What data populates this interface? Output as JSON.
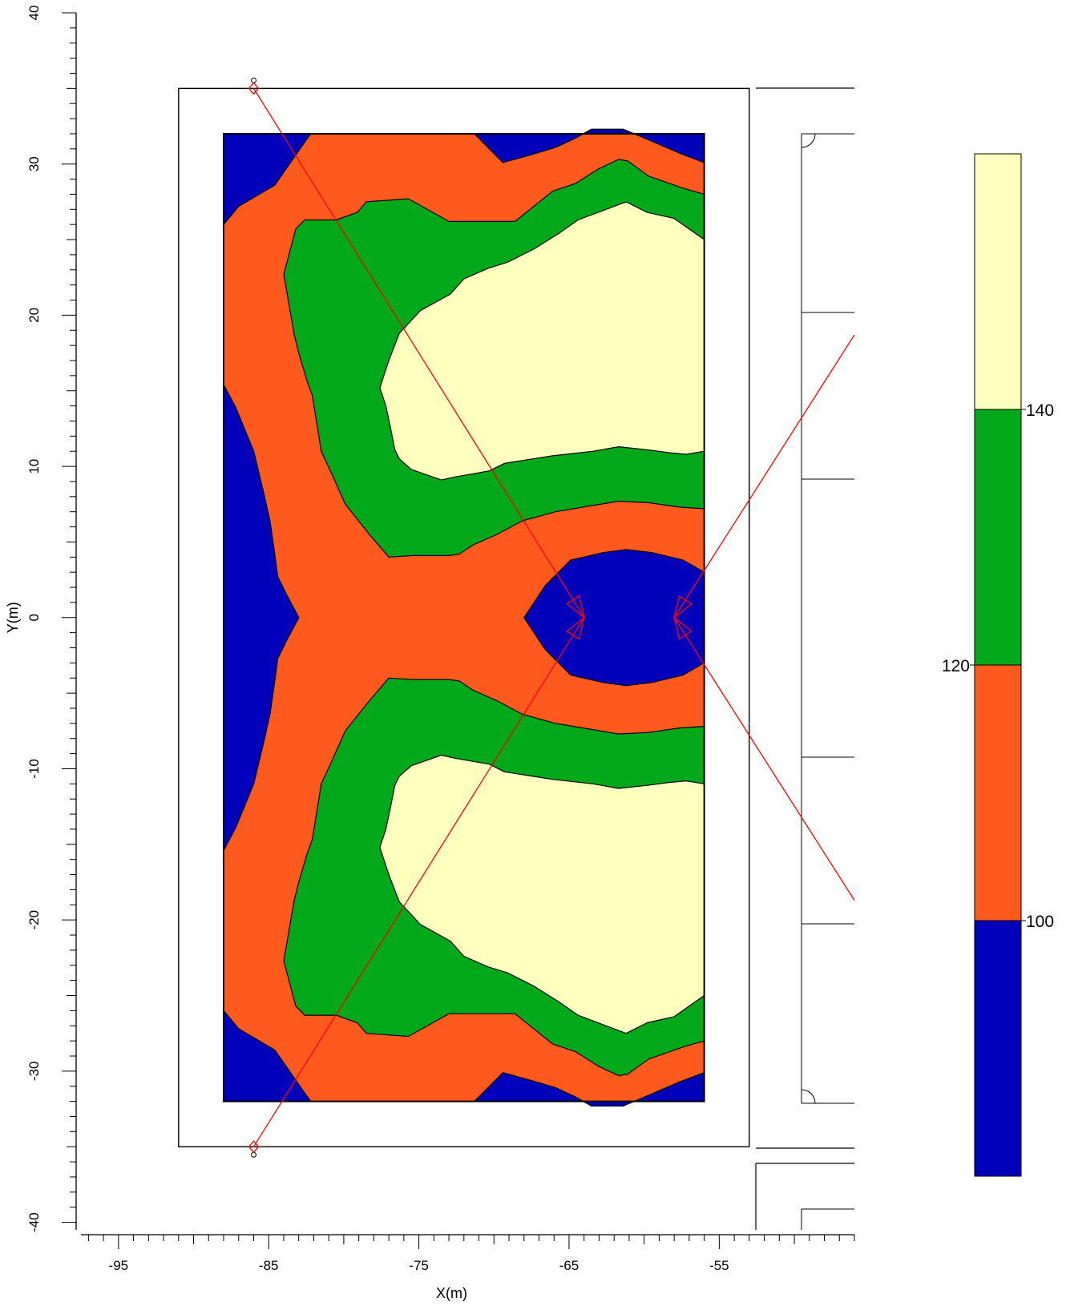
{
  "chart_data": {
    "type": "contour",
    "title": "",
    "xlabel": "X(m)",
    "ylabel": "Y(m)",
    "xlim": [
      -97.5,
      -46
    ],
    "ylim": [
      -40.5,
      40
    ],
    "x_ticks": [
      -95,
      -85,
      -75,
      -65,
      -55
    ],
    "y_ticks": [
      40,
      30,
      20,
      10,
      0,
      -10,
      -20,
      -30,
      -40
    ],
    "grid": false,
    "colors": {
      "below_100": "#0000BB",
      "100_to_120": "#FF5A1E",
      "120_to_140": "#00A81A",
      "above_140": "#FFFFBE",
      "outline": "#000000",
      "light_rays": "#FF0000"
    },
    "legend": {
      "placement": "right",
      "levels": [
        100,
        120,
        140
      ],
      "labels": [
        "140",
        "120",
        "100"
      ],
      "bands": [
        {
          "name": "above_140",
          "color": "#FFFFBE"
        },
        {
          "name": "120_to_140",
          "color": "#00A81A"
        },
        {
          "name": "100_to_120",
          "color": "#FF5A1E"
        },
        {
          "name": "below_100",
          "color": "#0000BB"
        }
      ]
    },
    "area": {
      "x": [
        -88,
        -56
      ],
      "y": [
        -32,
        32
      ]
    },
    "room_outline": {
      "x": [
        -91,
        -53
      ],
      "y": [
        -35,
        35
      ]
    },
    "sources": [
      {
        "x": -86,
        "y": 35
      },
      {
        "x": -86,
        "y": -35
      }
    ],
    "contours": [
      {
        "band": "100_to_120",
        "polygon": [
          [
            -88,
            26
          ],
          [
            -87,
            27.2
          ],
          [
            -84.6,
            28.6
          ],
          [
            -82.5,
            31.6
          ],
          [
            -82.2,
            32
          ],
          [
            -71.3,
            32
          ],
          [
            -69.4,
            30.1
          ],
          [
            -67.6,
            30.6
          ],
          [
            -65.9,
            31.1
          ],
          [
            -64.6,
            31.7
          ],
          [
            -63.5,
            32.3
          ],
          [
            -61.4,
            32.3
          ],
          [
            -59.7,
            31.6
          ],
          [
            -57.6,
            30.7
          ],
          [
            -56,
            30.1
          ],
          [
            -56,
            -30.1
          ],
          [
            -57.6,
            -30.7
          ],
          [
            -59.7,
            -31.6
          ],
          [
            -61.4,
            -32.3
          ],
          [
            -63.5,
            -32.3
          ],
          [
            -64.6,
            -31.7
          ],
          [
            -65.9,
            -31.1
          ],
          [
            -67.6,
            -30.6
          ],
          [
            -69.4,
            -30.1
          ],
          [
            -71.3,
            -32
          ],
          [
            -82.2,
            -32
          ],
          [
            -82.5,
            -31.6
          ],
          [
            -84.6,
            -28.6
          ],
          [
            -87,
            -27.2
          ],
          [
            -88,
            -26
          ],
          [
            -88,
            -15.4
          ],
          [
            -87.2,
            -13.9
          ],
          [
            -86,
            -11
          ],
          [
            -85.3,
            -8.1
          ],
          [
            -84.9,
            -6.3
          ],
          [
            -84.6,
            -4.2
          ],
          [
            -84.4,
            -2.7
          ],
          [
            -83.8,
            -1.5
          ],
          [
            -83,
            0
          ],
          [
            -83.8,
            1.5
          ],
          [
            -84.4,
            2.7
          ],
          [
            -84.6,
            4.2
          ],
          [
            -84.9,
            6.3
          ],
          [
            -85.3,
            8.1
          ],
          [
            -86,
            11
          ],
          [
            -87.2,
            13.9
          ],
          [
            -88,
            15.4
          ]
        ]
      },
      {
        "band": "120_to_140",
        "polygon": [
          [
            -80.5,
            26.3
          ],
          [
            -79.1,
            26.8
          ],
          [
            -78.5,
            27.5
          ],
          [
            -75.7,
            27.7
          ],
          [
            -73,
            26.2
          ],
          [
            -68.6,
            26.2
          ],
          [
            -67.6,
            27
          ],
          [
            -66.1,
            28.2
          ],
          [
            -64.6,
            28.7
          ],
          [
            -63,
            29.7
          ],
          [
            -61.7,
            30.3
          ],
          [
            -61.1,
            30.2
          ],
          [
            -59.7,
            29.2
          ],
          [
            -57.4,
            28.4
          ],
          [
            -56,
            28
          ],
          [
            -56,
            7.2
          ],
          [
            -57.6,
            7.3
          ],
          [
            -59.7,
            7.6
          ],
          [
            -61.7,
            7.7
          ],
          [
            -63.5,
            7.4
          ],
          [
            -65.9,
            7
          ],
          [
            -68.1,
            6.4
          ],
          [
            -69.8,
            5.5
          ],
          [
            -71.4,
            4.8
          ],
          [
            -72.3,
            4.2
          ],
          [
            -73,
            4.1
          ],
          [
            -75.4,
            4.1
          ],
          [
            -77,
            4
          ],
          [
            -78.3,
            5.5
          ],
          [
            -79.9,
            7.5
          ],
          [
            -80.8,
            9.5
          ],
          [
            -81.5,
            11
          ],
          [
            -82.1,
            14.7
          ],
          [
            -82.4,
            15.5
          ],
          [
            -83,
            17.5
          ],
          [
            -83.3,
            18.7
          ],
          [
            -84,
            22.7
          ],
          [
            -83.2,
            25.7
          ],
          [
            -82.6,
            26.3
          ]
        ]
      },
      {
        "band": "120_to_140",
        "polygon": [
          [
            -80.5,
            -26.3
          ],
          [
            -79.1,
            -26.8
          ],
          [
            -78.5,
            -27.5
          ],
          [
            -75.7,
            -27.7
          ],
          [
            -73,
            -26.2
          ],
          [
            -68.6,
            -26.2
          ],
          [
            -67.6,
            -27
          ],
          [
            -66.1,
            -28.2
          ],
          [
            -64.6,
            -28.7
          ],
          [
            -63,
            -29.7
          ],
          [
            -61.7,
            -30.3
          ],
          [
            -61.1,
            -30.2
          ],
          [
            -59.7,
            -29.2
          ],
          [
            -57.4,
            -28.4
          ],
          [
            -56,
            -28
          ],
          [
            -56,
            -7.2
          ],
          [
            -57.6,
            -7.3
          ],
          [
            -59.7,
            -7.6
          ],
          [
            -61.7,
            -7.7
          ],
          [
            -63.5,
            -7.4
          ],
          [
            -65.9,
            -7
          ],
          [
            -68.1,
            -6.4
          ],
          [
            -69.8,
            -5.5
          ],
          [
            -71.4,
            -4.8
          ],
          [
            -72.3,
            -4.2
          ],
          [
            -73,
            -4.1
          ],
          [
            -75.4,
            -4.1
          ],
          [
            -77,
            -4
          ],
          [
            -78.3,
            -5.5
          ],
          [
            -79.9,
            -7.5
          ],
          [
            -80.8,
            -9.5
          ],
          [
            -81.5,
            -11
          ],
          [
            -82.1,
            -14.7
          ],
          [
            -82.4,
            -15.5
          ],
          [
            -83,
            -17.5
          ],
          [
            -83.3,
            -18.7
          ],
          [
            -84,
            -22.7
          ],
          [
            -83.2,
            -25.7
          ],
          [
            -82.6,
            -26.3
          ]
        ]
      },
      {
        "band": "above_140",
        "polygon": [
          [
            -76.3,
            18.8
          ],
          [
            -74.9,
            20.3
          ],
          [
            -72.9,
            21.4
          ],
          [
            -72,
            22.4
          ],
          [
            -70.4,
            23.1
          ],
          [
            -69.1,
            23.5
          ],
          [
            -67.3,
            24.4
          ],
          [
            -65.7,
            25.4
          ],
          [
            -64.4,
            26.3
          ],
          [
            -61.2,
            27.5
          ],
          [
            -59.8,
            26.8
          ],
          [
            -58,
            26.4
          ],
          [
            -56,
            25
          ],
          [
            -56,
            11
          ],
          [
            -57.2,
            10.8
          ],
          [
            -58.3,
            10.9
          ],
          [
            -59.8,
            11.1
          ],
          [
            -61.7,
            11.3
          ],
          [
            -63.4,
            11
          ],
          [
            -66.1,
            10.7
          ],
          [
            -67.4,
            10.5
          ],
          [
            -69.3,
            10.2
          ],
          [
            -70.3,
            9.7
          ],
          [
            -72.6,
            9.3
          ],
          [
            -73.5,
            9.1
          ],
          [
            -75.5,
            9.8
          ],
          [
            -76.3,
            10.5
          ],
          [
            -76.6,
            11.1
          ],
          [
            -76.9,
            12.6
          ],
          [
            -77.2,
            14
          ],
          [
            -77.6,
            15.2
          ],
          [
            -77,
            17
          ]
        ]
      },
      {
        "band": "above_140",
        "polygon": [
          [
            -76.3,
            -18.8
          ],
          [
            -74.9,
            -20.3
          ],
          [
            -72.9,
            -21.4
          ],
          [
            -72,
            -22.4
          ],
          [
            -70.4,
            -23.1
          ],
          [
            -69.1,
            -23.5
          ],
          [
            -67.3,
            -24.4
          ],
          [
            -65.7,
            -25.4
          ],
          [
            -64.4,
            -26.3
          ],
          [
            -61.2,
            -27.5
          ],
          [
            -59.8,
            -26.8
          ],
          [
            -58,
            -26.4
          ],
          [
            -56,
            -25
          ],
          [
            -56,
            -11
          ],
          [
            -57.2,
            -10.8
          ],
          [
            -58.3,
            -10.9
          ],
          [
            -59.8,
            -11.1
          ],
          [
            -61.7,
            -11.3
          ],
          [
            -63.4,
            -11
          ],
          [
            -66.1,
            -10.7
          ],
          [
            -67.4,
            -10.5
          ],
          [
            -69.3,
            -10.2
          ],
          [
            -70.3,
            -9.7
          ],
          [
            -72.6,
            -9.3
          ],
          [
            -73.5,
            -9.1
          ],
          [
            -75.5,
            -9.8
          ],
          [
            -76.3,
            -10.5
          ],
          [
            -76.6,
            -11.1
          ],
          [
            -76.9,
            -12.6
          ],
          [
            -77.2,
            -14
          ],
          [
            -77.6,
            -15.2
          ],
          [
            -77,
            -17
          ]
        ]
      },
      {
        "band": "below_100",
        "polygon": [
          [
            -88,
            32
          ],
          [
            -88,
            26
          ],
          [
            -87,
            27.2
          ],
          [
            -84.6,
            28.6
          ],
          [
            -82.5,
            31.6
          ],
          [
            -82.2,
            32
          ]
        ]
      },
      {
        "band": "below_100",
        "polygon": [
          [
            -71.3,
            32
          ],
          [
            -69.4,
            30.1
          ],
          [
            -67.6,
            30.6
          ],
          [
            -65.9,
            31.1
          ],
          [
            -64.6,
            31.7
          ],
          [
            -63.5,
            32.3
          ],
          [
            -61.4,
            32.3
          ],
          [
            -59.7,
            31.6
          ],
          [
            -57.6,
            30.7
          ],
          [
            -56,
            30.1
          ],
          [
            -56,
            32
          ]
        ]
      },
      {
        "band": "below_100",
        "polygon": [
          [
            -88,
            15.4
          ],
          [
            -87.2,
            13.9
          ],
          [
            -86,
            11
          ],
          [
            -85.3,
            8.1
          ],
          [
            -84.9,
            6.3
          ],
          [
            -84.6,
            4.2
          ],
          [
            -84.4,
            2.7
          ],
          [
            -83.8,
            1.5
          ],
          [
            -83,
            0
          ],
          [
            -83.8,
            -1.5
          ],
          [
            -84.4,
            -2.7
          ],
          [
            -84.6,
            -4.2
          ],
          [
            -84.9,
            -6.3
          ],
          [
            -85.3,
            -8.1
          ],
          [
            -86,
            -11
          ],
          [
            -87.2,
            -13.9
          ],
          [
            -88,
            -15.4
          ]
        ]
      },
      {
        "band": "below_100",
        "polygon": [
          [
            -88,
            -32
          ],
          [
            -88,
            -26
          ],
          [
            -87,
            -27.2
          ],
          [
            -84.6,
            -28.6
          ],
          [
            -82.5,
            -31.6
          ],
          [
            -82.2,
            -32
          ]
        ]
      },
      {
        "band": "below_100",
        "polygon": [
          [
            -71.3,
            -32
          ],
          [
            -69.4,
            -30.1
          ],
          [
            -67.6,
            -30.6
          ],
          [
            -65.9,
            -31.1
          ],
          [
            -64.6,
            -31.7
          ],
          [
            -63.5,
            -32.3
          ],
          [
            -61.4,
            -32.3
          ],
          [
            -59.7,
            -31.6
          ],
          [
            -57.6,
            -30.7
          ],
          [
            -56,
            -30.1
          ],
          [
            -56,
            -32
          ]
        ]
      },
      {
        "band": "below_100",
        "polygon": [
          [
            -68,
            0
          ],
          [
            -66.6,
            2.1
          ],
          [
            -64.9,
            3.8
          ],
          [
            -62.7,
            4.3
          ],
          [
            -61.2,
            4.5
          ],
          [
            -59.5,
            4.3
          ],
          [
            -57.4,
            3.8
          ],
          [
            -56,
            3
          ],
          [
            -56,
            -3
          ],
          [
            -57.4,
            -3.8
          ],
          [
            -59.5,
            -4.3
          ],
          [
            -61.2,
            -4.5
          ],
          [
            -62.7,
            -4.3
          ],
          [
            -64.9,
            -3.8
          ],
          [
            -66.6,
            -2.1
          ]
        ]
      }
    ],
    "rays": [
      {
        "from": [
          -86,
          35
        ],
        "to": [
          -64,
          0
        ]
      },
      {
        "from": [
          -86,
          -35
        ],
        "to": [
          -64,
          0
        ]
      },
      {
        "from": [
          -46,
          18.7
        ],
        "to": [
          -58,
          0
        ]
      },
      {
        "from": [
          -46,
          -18.7
        ],
        "to": [
          -58,
          0
        ]
      }
    ]
  }
}
